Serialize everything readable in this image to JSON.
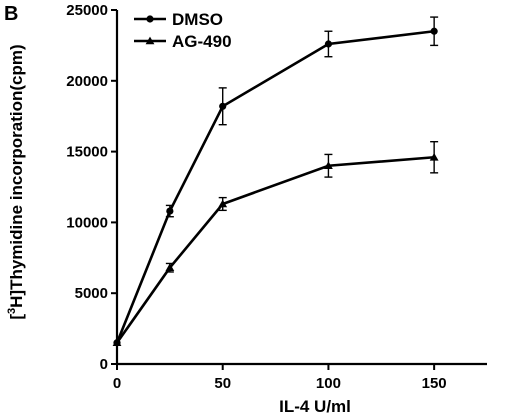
{
  "panel_label": "B",
  "chart_data": {
    "type": "line",
    "xlabel": "IL-4 U/ml",
    "ylabel_prefix": "[",
    "ylabel_sup": "3",
    "ylabel_rest": "H]Thymidine incorporation(cpm)",
    "x": [
      0,
      25,
      50,
      100,
      150
    ],
    "xlim": [
      0,
      175
    ],
    "ylim": [
      0,
      25000
    ],
    "xticks": [
      0,
      50,
      100,
      150
    ],
    "yticks": [
      0,
      5000,
      10000,
      15000,
      20000,
      25000
    ],
    "xtick_labels": [
      "0",
      "50",
      "100",
      "150"
    ],
    "ytick_labels": [
      "0",
      "5000",
      "10000",
      "15000",
      "20000",
      "25000"
    ],
    "legend_position": "top-left",
    "series": [
      {
        "name": "DMSO",
        "marker": "circle",
        "values": [
          1500,
          10800,
          18200,
          22600,
          23500
        ],
        "errors": [
          0,
          400,
          1300,
          900,
          1000
        ]
      },
      {
        "name": "AG-490",
        "marker": "triangle",
        "values": [
          1500,
          6800,
          11300,
          14000,
          14600
        ],
        "errors": [
          0,
          300,
          450,
          800,
          1100
        ]
      }
    ]
  }
}
